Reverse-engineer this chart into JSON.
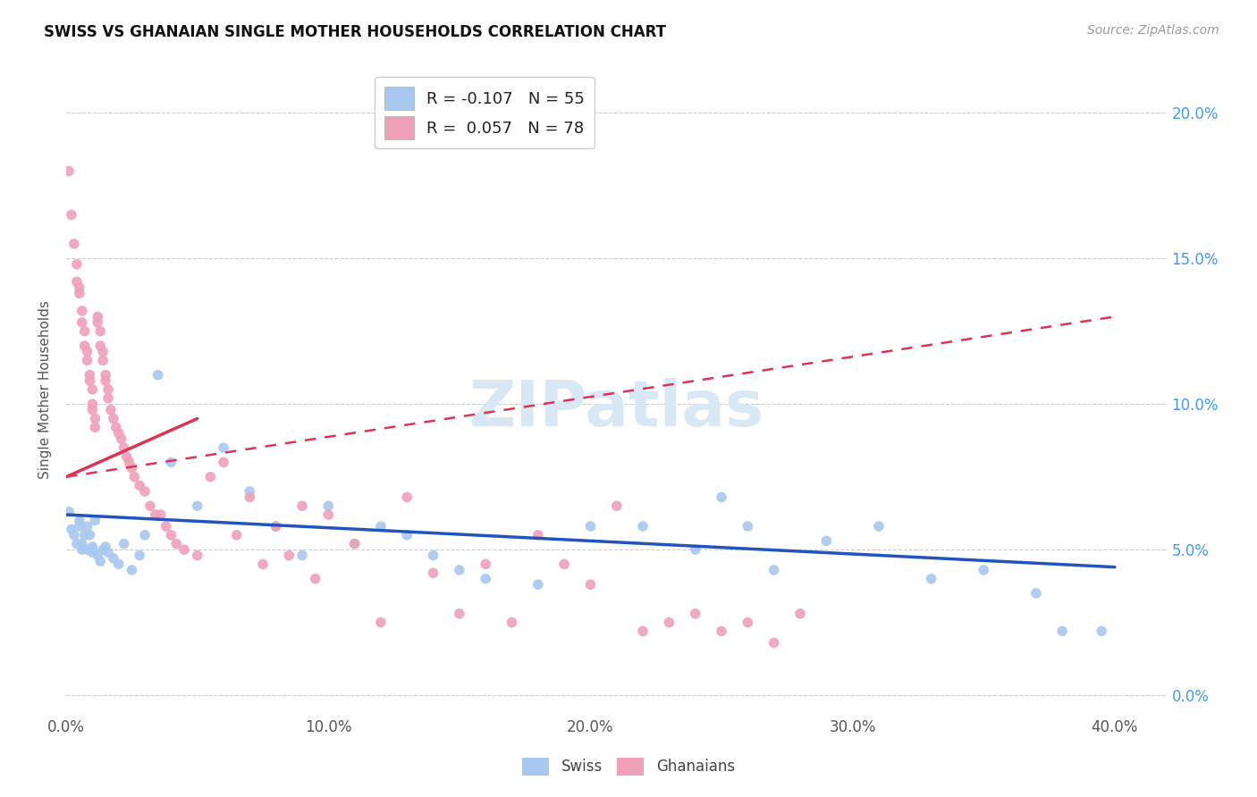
{
  "title": "SWISS VS GHANAIAN SINGLE MOTHER HOUSEHOLDS CORRELATION CHART",
  "source": "Source: ZipAtlas.com",
  "ylabel": "Single Mother Households",
  "swiss_R": -0.107,
  "swiss_N": 55,
  "ghanaian_R": 0.057,
  "ghanaian_N": 78,
  "swiss_color": "#A8C8F0",
  "ghanaian_color": "#F0A0B8",
  "swiss_line_color": "#2255BB",
  "ghanaian_line_color": "#DD3355",
  "right_tick_color": "#4499EE",
  "grid_color": "#CCCCCC",
  "xlim": [
    0.0,
    0.42
  ],
  "ylim": [
    -0.005,
    0.215
  ],
  "x_ticks": [
    0.0,
    0.1,
    0.2,
    0.3,
    0.4
  ],
  "y_ticks": [
    0.0,
    0.05,
    0.1,
    0.15,
    0.2
  ],
  "swiss_x": [
    0.001,
    0.002,
    0.003,
    0.004,
    0.005,
    0.005,
    0.006,
    0.006,
    0.007,
    0.008,
    0.008,
    0.009,
    0.01,
    0.01,
    0.01,
    0.011,
    0.012,
    0.013,
    0.014,
    0.015,
    0.016,
    0.018,
    0.02,
    0.022,
    0.025,
    0.028,
    0.03,
    0.035,
    0.04,
    0.05,
    0.06,
    0.07,
    0.08,
    0.09,
    0.1,
    0.11,
    0.12,
    0.13,
    0.14,
    0.15,
    0.16,
    0.18,
    0.2,
    0.22,
    0.24,
    0.25,
    0.26,
    0.27,
    0.29,
    0.31,
    0.33,
    0.35,
    0.37,
    0.38,
    0.395
  ],
  "swiss_y": [
    0.063,
    0.057,
    0.055,
    0.052,
    0.058,
    0.06,
    0.05,
    0.052,
    0.055,
    0.05,
    0.058,
    0.055,
    0.05,
    0.051,
    0.049,
    0.06,
    0.048,
    0.046,
    0.05,
    0.051,
    0.049,
    0.047,
    0.045,
    0.052,
    0.043,
    0.048,
    0.055,
    0.11,
    0.08,
    0.065,
    0.085,
    0.07,
    0.058,
    0.048,
    0.065,
    0.052,
    0.058,
    0.055,
    0.048,
    0.043,
    0.04,
    0.038,
    0.058,
    0.058,
    0.05,
    0.068,
    0.058,
    0.043,
    0.053,
    0.058,
    0.04,
    0.043,
    0.035,
    0.022,
    0.022
  ],
  "ghanaian_x": [
    0.001,
    0.002,
    0.003,
    0.004,
    0.004,
    0.005,
    0.005,
    0.006,
    0.006,
    0.007,
    0.007,
    0.008,
    0.008,
    0.009,
    0.009,
    0.01,
    0.01,
    0.01,
    0.011,
    0.011,
    0.012,
    0.012,
    0.013,
    0.013,
    0.014,
    0.014,
    0.015,
    0.015,
    0.016,
    0.016,
    0.017,
    0.018,
    0.019,
    0.02,
    0.021,
    0.022,
    0.023,
    0.024,
    0.025,
    0.026,
    0.028,
    0.03,
    0.032,
    0.034,
    0.036,
    0.038,
    0.04,
    0.042,
    0.045,
    0.05,
    0.055,
    0.06,
    0.065,
    0.07,
    0.075,
    0.08,
    0.085,
    0.09,
    0.095,
    0.1,
    0.11,
    0.12,
    0.13,
    0.14,
    0.15,
    0.16,
    0.17,
    0.18,
    0.19,
    0.2,
    0.21,
    0.22,
    0.23,
    0.24,
    0.25,
    0.26,
    0.27,
    0.28
  ],
  "ghanaian_y": [
    0.18,
    0.165,
    0.155,
    0.148,
    0.142,
    0.14,
    0.138,
    0.132,
    0.128,
    0.125,
    0.12,
    0.118,
    0.115,
    0.11,
    0.108,
    0.105,
    0.1,
    0.098,
    0.095,
    0.092,
    0.13,
    0.128,
    0.125,
    0.12,
    0.118,
    0.115,
    0.11,
    0.108,
    0.105,
    0.102,
    0.098,
    0.095,
    0.092,
    0.09,
    0.088,
    0.085,
    0.082,
    0.08,
    0.078,
    0.075,
    0.072,
    0.07,
    0.065,
    0.062,
    0.062,
    0.058,
    0.055,
    0.052,
    0.05,
    0.048,
    0.075,
    0.08,
    0.055,
    0.068,
    0.045,
    0.058,
    0.048,
    0.065,
    0.04,
    0.062,
    0.052,
    0.025,
    0.068,
    0.042,
    0.028,
    0.045,
    0.025,
    0.055,
    0.045,
    0.038,
    0.065,
    0.022,
    0.025,
    0.028,
    0.022,
    0.025,
    0.018,
    0.028
  ]
}
